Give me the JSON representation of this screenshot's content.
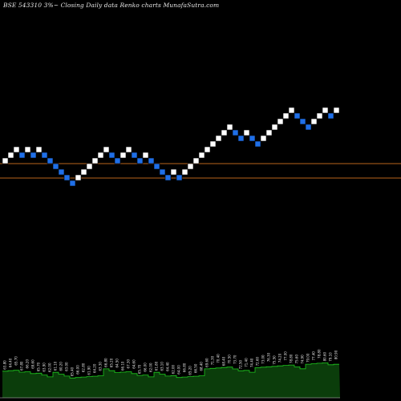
{
  "chart_data": {
    "type": "renko",
    "title": "BSE 543310  3%~  Closing Daily data  Renko  charts MunafaSutra.com",
    "colors": {
      "up_brick": "#ffffff",
      "down_brick": "#1f6fe8",
      "reference_line": "#b8651b",
      "volume_fill": "#0b3d0b",
      "volume_line": "#1ec81e",
      "background": "#000000"
    },
    "reference_lines": [
      "upper",
      "lower"
    ],
    "bricks": [
      {
        "dir": "up",
        "level": 5
      },
      {
        "dir": "up",
        "level": 6
      },
      {
        "dir": "up",
        "level": 7
      },
      {
        "dir": "down",
        "level": 6
      },
      {
        "dir": "up",
        "level": 7
      },
      {
        "dir": "down",
        "level": 6
      },
      {
        "dir": "up",
        "level": 7
      },
      {
        "dir": "down",
        "level": 6
      },
      {
        "dir": "down",
        "level": 5
      },
      {
        "dir": "down",
        "level": 4
      },
      {
        "dir": "down",
        "level": 3
      },
      {
        "dir": "down",
        "level": 2
      },
      {
        "dir": "down",
        "level": 1
      },
      {
        "dir": "up",
        "level": 2
      },
      {
        "dir": "up",
        "level": 3
      },
      {
        "dir": "up",
        "level": 4
      },
      {
        "dir": "up",
        "level": 5
      },
      {
        "dir": "up",
        "level": 6
      },
      {
        "dir": "up",
        "level": 7
      },
      {
        "dir": "down",
        "level": 6
      },
      {
        "dir": "down",
        "level": 5
      },
      {
        "dir": "up",
        "level": 6
      },
      {
        "dir": "up",
        "level": 7
      },
      {
        "dir": "down",
        "level": 6
      },
      {
        "dir": "down",
        "level": 5
      },
      {
        "dir": "up",
        "level": 6
      },
      {
        "dir": "down",
        "level": 5
      },
      {
        "dir": "down",
        "level": 4
      },
      {
        "dir": "down",
        "level": 3
      },
      {
        "dir": "down",
        "level": 2
      },
      {
        "dir": "up",
        "level": 3
      },
      {
        "dir": "down",
        "level": 2
      },
      {
        "dir": "up",
        "level": 3
      },
      {
        "dir": "up",
        "level": 4
      },
      {
        "dir": "up",
        "level": 5
      },
      {
        "dir": "up",
        "level": 6
      },
      {
        "dir": "up",
        "level": 7
      },
      {
        "dir": "up",
        "level": 8
      },
      {
        "dir": "up",
        "level": 9
      },
      {
        "dir": "up",
        "level": 10
      },
      {
        "dir": "up",
        "level": 11
      },
      {
        "dir": "down",
        "level": 10
      },
      {
        "dir": "down",
        "level": 9
      },
      {
        "dir": "up",
        "level": 10
      },
      {
        "dir": "down",
        "level": 9
      },
      {
        "dir": "down",
        "level": 8
      },
      {
        "dir": "up",
        "level": 9
      },
      {
        "dir": "up",
        "level": 10
      },
      {
        "dir": "up",
        "level": 11
      },
      {
        "dir": "up",
        "level": 12
      },
      {
        "dir": "up",
        "level": 13
      },
      {
        "dir": "up",
        "level": 14
      },
      {
        "dir": "down",
        "level": 13
      },
      {
        "dir": "down",
        "level": 12
      },
      {
        "dir": "down",
        "level": 11
      },
      {
        "dir": "up",
        "level": 12
      },
      {
        "dir": "up",
        "level": 13
      },
      {
        "dir": "up",
        "level": 14
      },
      {
        "dir": "down",
        "level": 13
      },
      {
        "dir": "up",
        "level": 14
      }
    ],
    "volume_labels": [
      "63.80",
      "64.40",
      "65.70",
      "67.80",
      "66.20",
      "69.60",
      "65.70",
      "63.90",
      "62.00",
      "61.10",
      "60.20",
      "63.00",
      "65.40",
      "66.00",
      "62.80",
      "61.90",
      "64.20",
      "63.30",
      "66.80",
      "65.20",
      "64.50",
      "66.10",
      "67.30",
      "64.60",
      "65.70",
      "66.00",
      "62.00",
      "61.80",
      "63.10",
      "64.40",
      "62.00",
      "64.00",
      "66.80",
      "65.20",
      "66.50",
      "68.40",
      "69.60",
      "71.30",
      "70.40",
      "68.40",
      "70.50",
      "73.70",
      "72.50",
      "71.40",
      "74.40",
      "72.60",
      "73.00",
      "76.30",
      "75.50",
      "74.20",
      "77.00",
      "78.80",
      "75.60",
      "74.90",
      "79.00",
      "77.40",
      "78.80",
      "80.60",
      "79.10",
      "80.90"
    ]
  }
}
